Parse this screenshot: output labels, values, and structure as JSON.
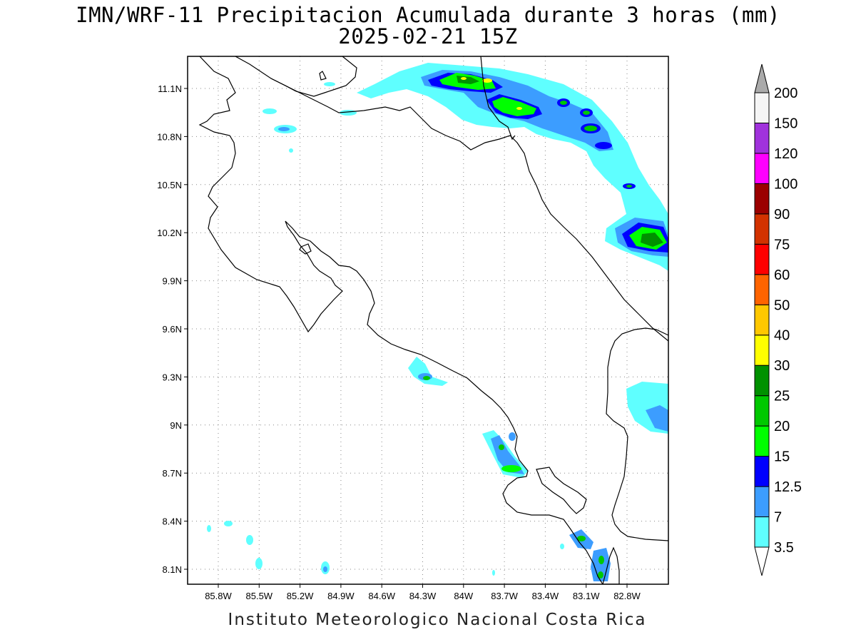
{
  "title_line1": "IMN/WRF-11 Precipitacion Acumulada durante 3 horas (mm)",
  "title_line2": "2025-02-21 15Z",
  "footer": "Instituto Meteorologico Nacional Costa Rica",
  "map": {
    "lon_ticks": [
      "85.8W",
      "85.5W",
      "85.2W",
      "84.9W",
      "84.6W",
      "84.3W",
      "84W",
      "83.7W",
      "83.4W",
      "83.1W",
      "82.8W"
    ],
    "lat_ticks": [
      "11.1N",
      "10.8N",
      "10.5N",
      "10.2N",
      "9.9N",
      "9.6N",
      "9.3N",
      "9N",
      "8.7N",
      "8.4N",
      "8.1N"
    ]
  },
  "legend": {
    "levels": [
      "3.5",
      "7",
      "12.5",
      "15",
      "20",
      "25",
      "30",
      "40",
      "50",
      "60",
      "75",
      "90",
      "100",
      "120",
      "150",
      "200"
    ],
    "colors": [
      "#5fffff",
      "#3c9dff",
      "#0000ff",
      "#00ff00",
      "#00c800",
      "#009100",
      "#ffff00",
      "#ffc800",
      "#ff6400",
      "#ff0000",
      "#d23200",
      "#9b0000",
      "#ff00ff",
      "#a032dc",
      "#f5f5f5"
    ]
  }
}
